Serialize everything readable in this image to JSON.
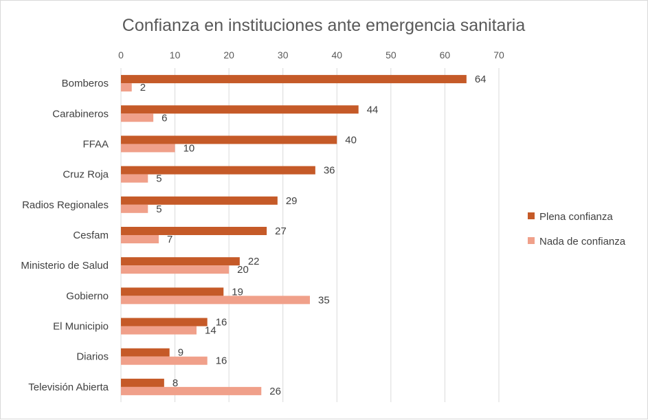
{
  "chart_data": {
    "type": "bar",
    "orientation": "horizontal",
    "title": "Confianza en instituciones ante emergencia sanitaria",
    "xlabel": "",
    "ylabel": "",
    "xlim": [
      0,
      70
    ],
    "x_ticks": [
      0,
      10,
      20,
      30,
      40,
      50,
      60,
      70
    ],
    "x_axis_position": "top",
    "grid": "vertical",
    "legend_position": "right",
    "categories": [
      "Bomberos",
      "Carabineros",
      "FFAA",
      "Cruz Roja",
      "Radios Regionales",
      "Cesfam",
      "Ministerio de Salud",
      "Gobierno",
      "El Municipio",
      "Diarios",
      "Televisión Abierta"
    ],
    "series": [
      {
        "name": "Plena confianza",
        "color": "#c55a28",
        "values": [
          64,
          44,
          40,
          36,
          29,
          27,
          22,
          19,
          16,
          9,
          8
        ]
      },
      {
        "name": "Nada de confianza",
        "color": "#f0a08a",
        "values": [
          2,
          6,
          10,
          5,
          5,
          7,
          20,
          35,
          14,
          16,
          26
        ]
      }
    ]
  }
}
